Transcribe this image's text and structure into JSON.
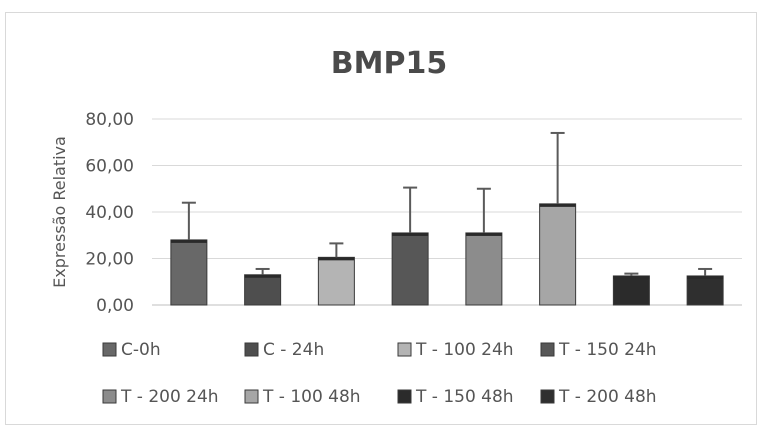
{
  "chart_data": {
    "type": "bar",
    "title": "BMP15",
    "xlabel": "",
    "ylabel": "Expressão Relativa",
    "ylim": [
      0,
      80
    ],
    "yticks": [
      "0,00",
      "20,00",
      "40,00",
      "60,00",
      "80,00"
    ],
    "ytick_values": [
      0,
      20,
      40,
      60,
      80
    ],
    "grid": true,
    "legend_placement": "bottom",
    "categories": [
      "C-0h",
      "C - 24h",
      "T -  100 24h",
      "T -  150 24h",
      "T - 200 24h",
      "T - 100 48h",
      "T - 150 48h",
      "T - 200 48h"
    ],
    "values": [
      28,
      13,
      20.5,
      31,
      31,
      43.5,
      12.5,
      12.5
    ],
    "error_upper": [
      44,
      15.5,
      26.5,
      50.5,
      50,
      74,
      13.5,
      15.5
    ],
    "colors": [
      "#686868",
      "#4e4e4e",
      "#b4b4b4",
      "#575757",
      "#8c8c8c",
      "#a6a6a6",
      "#2b2b2b",
      "#2f2f2f"
    ]
  }
}
